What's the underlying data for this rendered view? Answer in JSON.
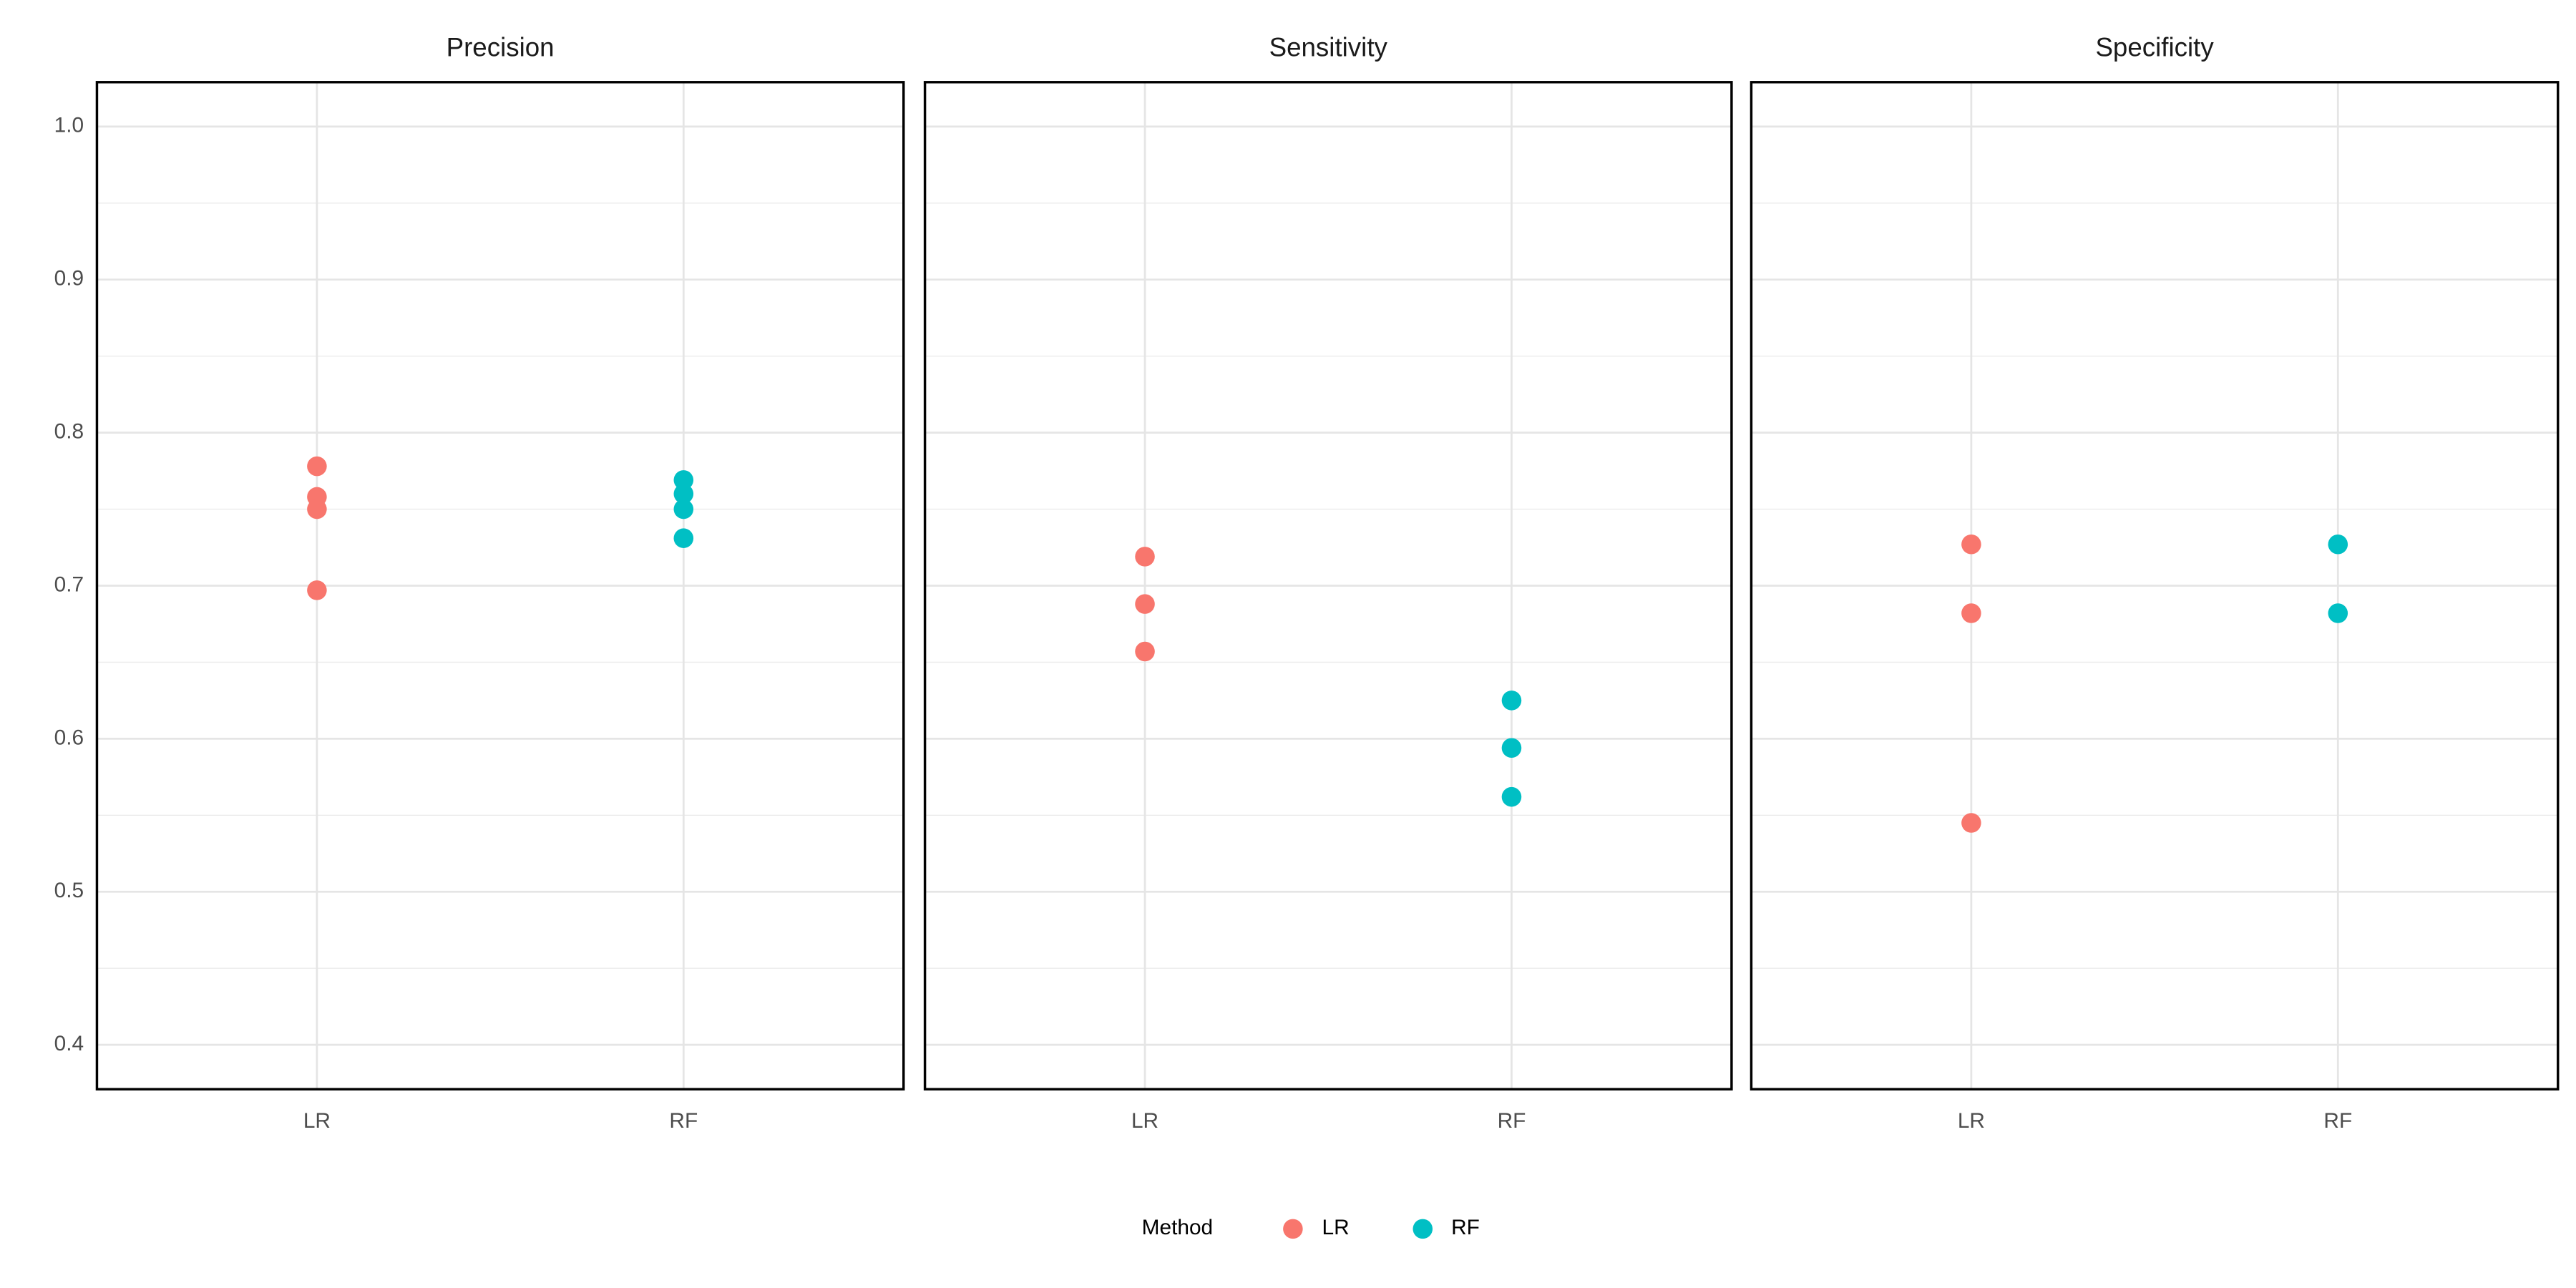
{
  "chart_data": [
    {
      "type": "dot",
      "title": "Precision",
      "categories": [
        "LR",
        "RF"
      ],
      "series": [
        {
          "name": "LR",
          "color": "#F8766D",
          "x": [
            "LR",
            "LR",
            "LR",
            "LR"
          ],
          "values": [
            0.778,
            0.758,
            0.75,
            0.697
          ]
        },
        {
          "name": "RF",
          "color": "#00BFC4",
          "x": [
            "RF",
            "RF",
            "RF",
            "RF"
          ],
          "values": [
            0.769,
            0.76,
            0.75,
            0.731
          ]
        }
      ],
      "ylim": [
        0.371,
        1.029
      ],
      "yticks": [
        0.4,
        0.5,
        0.6,
        0.7,
        0.8,
        0.9,
        {
          "value": 1,
          "label": "1.0"
        }
      ],
      "grid": true,
      "minor_grid": true
    },
    {
      "type": "dot",
      "title": "Sensitivity",
      "categories": [
        "LR",
        "RF"
      ],
      "series": [
        {
          "name": "LR",
          "color": "#F8766D",
          "x": [
            "LR",
            "LR",
            "LR"
          ],
          "values": [
            0.719,
            0.688,
            0.657
          ]
        },
        {
          "name": "RF",
          "color": "#00BFC4",
          "x": [
            "RF",
            "RF",
            "RF"
          ],
          "values": [
            0.625,
            0.594,
            0.562
          ]
        }
      ]
    },
    {
      "type": "dot",
      "title": "Specificity",
      "categories": [
        "LR",
        "RF"
      ],
      "series": [
        {
          "name": "LR",
          "color": "#F8766D",
          "x": [
            "LR",
            "LR",
            "LR"
          ],
          "values": [
            0.727,
            0.682,
            0.545
          ]
        },
        {
          "name": "RF",
          "color": "#00BFC4",
          "x": [
            "RF",
            "RF"
          ],
          "values": [
            0.727,
            0.682
          ]
        }
      ]
    }
  ],
  "legend": {
    "title": "Method",
    "position": "bottom"
  }
}
